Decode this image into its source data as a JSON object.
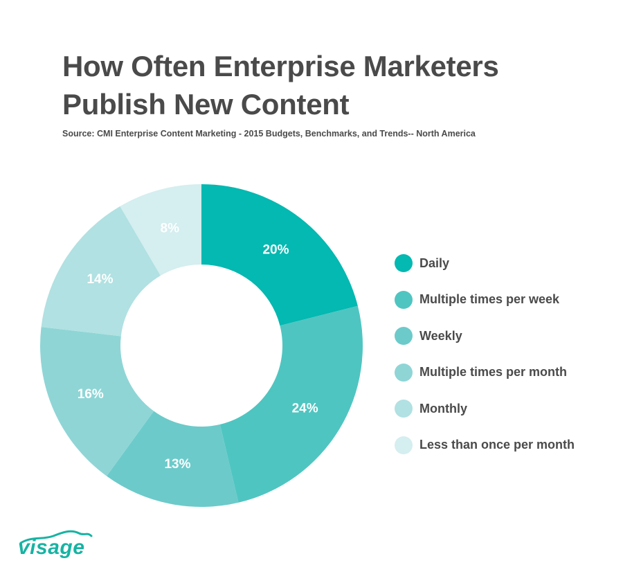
{
  "title_lines": [
    "How Often Enterprise Marketers",
    "Publish New Content"
  ],
  "source": "Source: CMI Enterprise Content Marketing - 2015 Budgets, Benchmarks, and Trends-- North America",
  "logo_text": "visage",
  "logo_color": "#17b3a3",
  "chart_data": {
    "type": "pie",
    "style": "donut",
    "title": "How Often Enterprise Marketers Publish New Content",
    "subtitle": "Source: CMI Enterprise Content Marketing - 2015 Budgets, Benchmarks, and Trends-- North America",
    "legend_position": "right",
    "slices": [
      {
        "label": "Daily",
        "value": 20,
        "display": "20%",
        "color": "#03b9b1"
      },
      {
        "label": "Multiple times per week",
        "value": 24,
        "display": "24%",
        "color": "#4fc5c1"
      },
      {
        "label": "Weekly",
        "value": 13,
        "display": "13%",
        "color": "#6ccaca"
      },
      {
        "label": "Multiple times per month",
        "value": 16,
        "display": "16%",
        "color": "#8fd5d6"
      },
      {
        "label": "Monthly",
        "value": 14,
        "display": "14%",
        "color": "#b1e1e2"
      },
      {
        "label": "Less than once per month",
        "value": 8,
        "display": "8%",
        "color": "#d5eeef"
      }
    ]
  }
}
